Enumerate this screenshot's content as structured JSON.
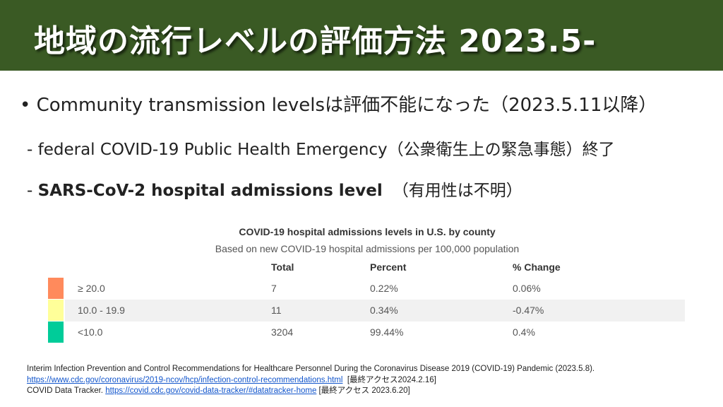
{
  "title": "地域の流行レベルの評価方法 2023.5-",
  "bullets": {
    "b1": "• Community transmission levelsは評価不能になった（2023.5.11以降）",
    "b2": "- federal COVID-19 Public Health Emergency（公衆衛生上の緊急事態）終了",
    "b3_prefix": "- ",
    "b3_bold": "SARS-CoV-2 hospital admissions level",
    "b3_suffix": "（有用性は不明）"
  },
  "table": {
    "title": "COVID-19 hospital admissions levels in U.S. by county",
    "subtitle": "Based on new COVID-19 hospital admissions per 100,000 population",
    "headers": [
      "Total",
      "Percent",
      "% Change"
    ],
    "rows": [
      {
        "level": "≥ 20.0",
        "total": "7",
        "percent": "0.22%",
        "change": "0.06%",
        "color": "#ff8a5c"
      },
      {
        "level": "10.0 - 19.9",
        "total": "11",
        "percent": "0.34%",
        "change": "-0.47%",
        "color": "#ffff99"
      },
      {
        "level": "<10.0",
        "total": "3204",
        "percent": "99.44%",
        "change": "0.4%",
        "color": "#00cc99"
      }
    ]
  },
  "footer": {
    "ref1_text": "Interim Infection Prevention and Control Recommendations for Healthcare Personnel During the Coronavirus Disease 2019 (COVID-19) Pandemic (2023.5.8). ",
    "ref1_link": "https://www.cdc.gov/coronavirus/2019-ncov/hcp/infection-control-recommendations.html",
    "ref1_access": "  [最終アクセス2024.2.16]",
    "ref2_text": "COVID Data Tracker. ",
    "ref2_link": "https://covid.cdc.gov/covid-data-tracker/#datatracker-home",
    "ref2_access": " [最終アクセス 2023.6.20]"
  }
}
